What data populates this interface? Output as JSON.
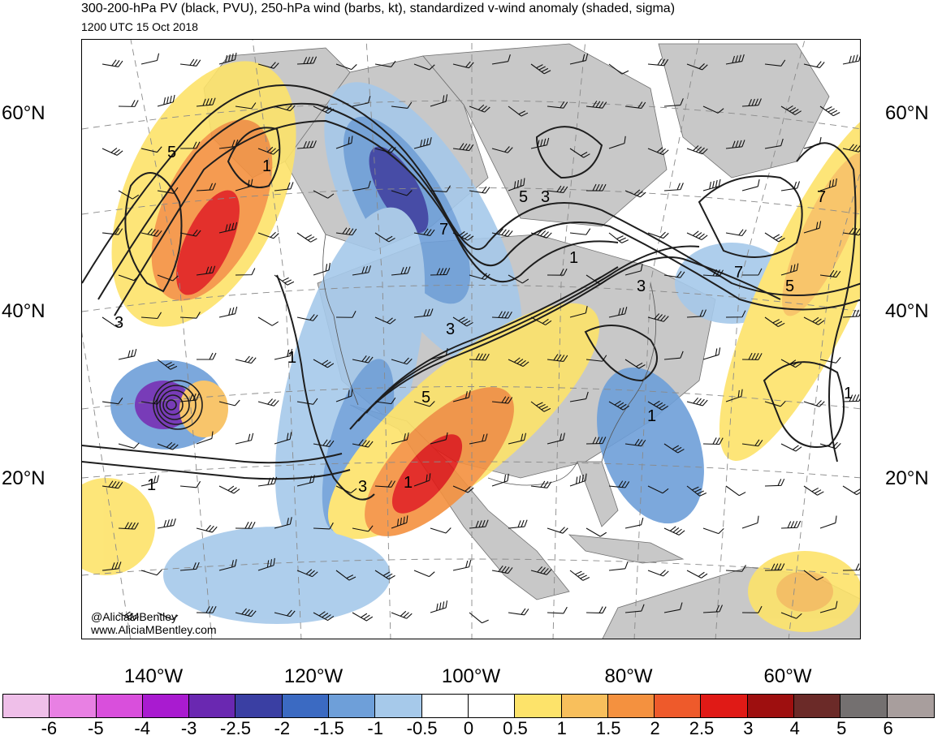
{
  "header": {
    "title": "300-200-hPa PV (black, PVU), 250-hPa wind (barbs, kt), standardized v-wind anomaly (shaded, sigma)",
    "subtitle": "1200 UTC 15 Oct 2018"
  },
  "axes": {
    "lat_left": [
      "60°N",
      "40°N",
      "20°N"
    ],
    "lat_right": [
      "60°N",
      "40°N",
      "20°N"
    ],
    "lon_bottom": [
      "140°W",
      "120°W",
      "100°W",
      "80°W",
      "60°W"
    ]
  },
  "contour_labels": [
    "5",
    "1",
    "3",
    "7",
    "1",
    "3",
    "5",
    "3",
    "5",
    "7",
    "3",
    "1",
    "3",
    "1",
    "7",
    "5",
    "1",
    "1",
    "1"
  ],
  "credit": {
    "handle": "@AliciaMBentley",
    "website": "www.AliciaMBentley.com"
  },
  "colorbar": {
    "tick_labels": [
      "-6",
      "-5",
      "-4",
      "-3",
      "-2.5",
      "-2",
      "-1.5",
      "-1",
      "-0.5",
      "0",
      "0.5",
      "1",
      "1.5",
      "2",
      "2.5",
      "3",
      "4",
      "5",
      "6"
    ],
    "colors": [
      "#efbfe9",
      "#e880e3",
      "#d94fdc",
      "#a91bd0",
      "#6a28b1",
      "#3a3fa3",
      "#3b6ac2",
      "#6e9fd9",
      "#a6c9ea",
      "#ffffff",
      "#ffffff",
      "#fde36a",
      "#f8bf5c",
      "#f4913f",
      "#ee5a2b",
      "#e01a16",
      "#9e0f0f",
      "#6b2a28",
      "#747070",
      "#a89e9d"
    ]
  },
  "map": {
    "land_color": "#c8c8c8",
    "ocean_color": "#ffffff",
    "contour_color": "#1e1e1e"
  }
}
